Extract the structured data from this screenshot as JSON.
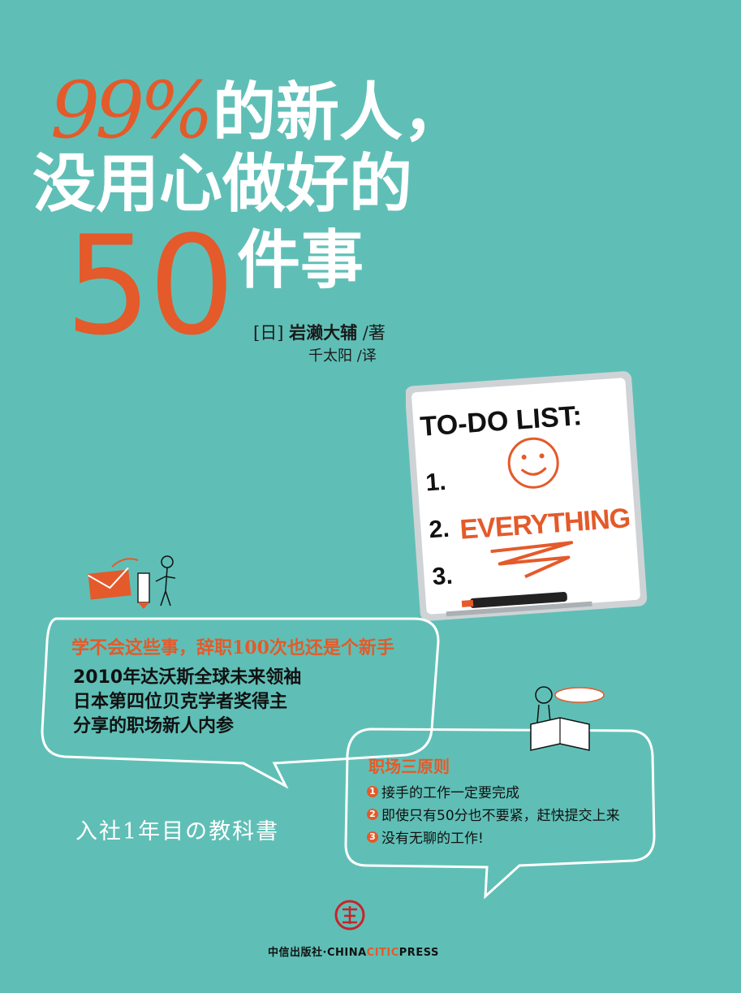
{
  "title": {
    "percent": "99%",
    "line1": "的新人，",
    "line2": "没用心做好的",
    "number": "50",
    "line3": "件事"
  },
  "author": {
    "prefix": "[日]",
    "name": "岩濑大辅",
    "role": "/著",
    "translator_line": "千太阳 /译"
  },
  "whiteboard": {
    "heading": "TO-DO LIST:",
    "item1": "1.",
    "item2": "2.",
    "item3": "3.",
    "scribble": "EVERYTHING"
  },
  "bubble_main": {
    "headline": "学不会这些事，辞职100次也还是个新手",
    "line1": "2010年达沃斯全球未来领袖",
    "line2": "日本第四位贝克学者奖得主",
    "line3": "分享的职场新人内参"
  },
  "subtitle_jp": "入社1年目の教科書",
  "bubble_principles": {
    "title": "职场三原则",
    "items": [
      {
        "num": "1",
        "text": "接手的工作一定要完成"
      },
      {
        "num": "2",
        "text": "即使只有50分也不要紧，赶快提交上来"
      },
      {
        "num": "3",
        "text": "没有无聊的工作!"
      }
    ]
  },
  "publisher": {
    "cn": "中信出版社·",
    "en_pre": "CHINA",
    "en_hl": "CITIC",
    "en_post": "PRESS"
  },
  "colors": {
    "background": "#5fbfb6",
    "accent": "#e45a2a",
    "white": "#ffffff"
  }
}
